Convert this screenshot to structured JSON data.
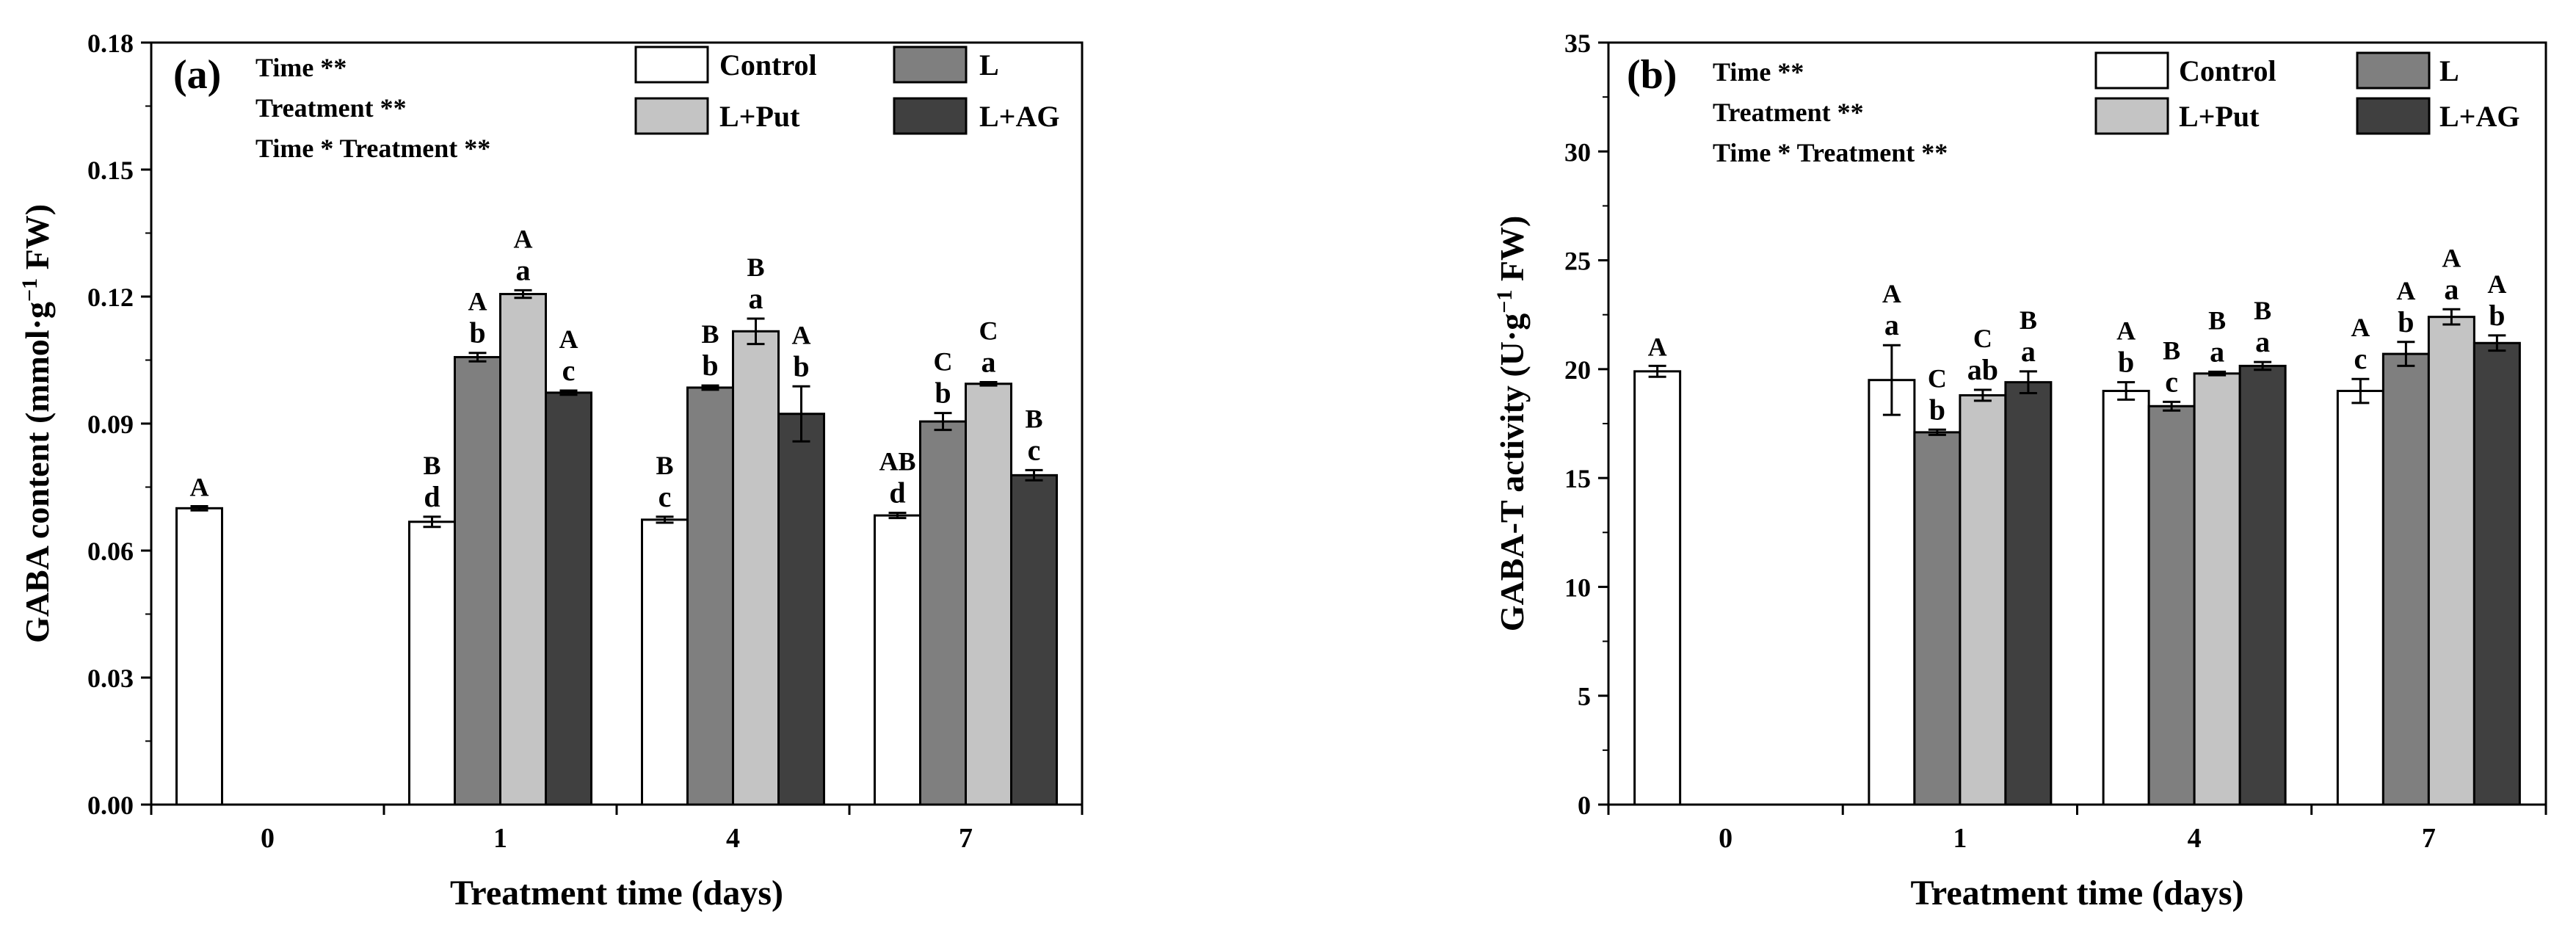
{
  "series_style": [
    {
      "name": "Control",
      "color": "#ffffff"
    },
    {
      "name": "L",
      "color": "#7f7f7f"
    },
    {
      "name": "L+Put",
      "color": "#c4c4c4"
    },
    {
      "name": "L+AG",
      "color": "#404040"
    }
  ],
  "chart_data": [
    {
      "type": "bar",
      "panel_label": "(a)",
      "xlabel": "Treatment time (days)",
      "ylabel": "GABA content (mmol·g",
      "ylabel_sup": "−1",
      "ylabel_suffix": " FW)",
      "ylim": [
        0,
        0.18
      ],
      "yticks": [
        "0.00",
        "0.03",
        "0.06",
        "0.09",
        "0.12",
        "0.15",
        "0.18"
      ],
      "categories": [
        "0",
        "1",
        "4",
        "7"
      ],
      "stats": [
        "Time **",
        "Treatment  **",
        "Time * Treatment **"
      ],
      "legend": [
        "Control",
        "L",
        "L+Put",
        "L+AG"
      ],
      "series": [
        {
          "name": "Control",
          "values": [
            0.07,
            0.0668,
            0.0673,
            0.0683
          ],
          "errors": [
            0.0005,
            0.0012,
            0.0007,
            0.0006
          ],
          "upper": [
            "A",
            "B",
            "B",
            "AB"
          ],
          "lower": [
            "",
            "d",
            "c",
            "d"
          ]
        },
        {
          "name": "L",
          "values": [
            null,
            0.1057,
            0.0985,
            0.0905
          ],
          "errors": [
            null,
            0.001,
            0.0005,
            0.002
          ],
          "upper": [
            "",
            "A",
            "B",
            "C"
          ],
          "lower": [
            "",
            "b",
            "b",
            "b"
          ]
        },
        {
          "name": "L+Put",
          "values": [
            null,
            0.1206,
            0.1118,
            0.0994
          ],
          "errors": [
            null,
            0.0009,
            0.003,
            0.0004
          ],
          "upper": [
            "",
            "A",
            "B",
            "C"
          ],
          "lower": [
            "",
            "a",
            "a",
            "a"
          ]
        },
        {
          "name": "L+AG",
          "values": [
            null,
            0.0973,
            0.0923,
            0.0778
          ],
          "errors": [
            null,
            0.0005,
            0.0065,
            0.0012
          ],
          "upper": [
            "",
            "A",
            "A",
            "B"
          ],
          "lower": [
            "",
            "c",
            "b",
            "c"
          ]
        }
      ]
    },
    {
      "type": "bar",
      "panel_label": "(b)",
      "xlabel": "Treatment time (days)",
      "ylabel": "GABA-T activity (U·g",
      "ylabel_sup": "−1",
      "ylabel_suffix": " FW)",
      "ylim": [
        0,
        35
      ],
      "yticks": [
        "0",
        "5",
        "10",
        "15",
        "20",
        "25",
        "30",
        "35"
      ],
      "categories": [
        "0",
        "1",
        "4",
        "7"
      ],
      "stats": [
        "Time **",
        "Treatment  **",
        "Time * Treatment **"
      ],
      "legend": [
        "Control",
        "L",
        "L+Put",
        "L+AG"
      ],
      "series": [
        {
          "name": "Control",
          "values": [
            19.9,
            19.5,
            19.0,
            19.0
          ],
          "errors": [
            0.25,
            1.6,
            0.4,
            0.55
          ],
          "upper": [
            "A",
            "A",
            "A",
            "A"
          ],
          "lower": [
            "",
            "a",
            "b",
            "c"
          ]
        },
        {
          "name": "L",
          "values": [
            null,
            17.1,
            18.3,
            20.7
          ],
          "errors": [
            null,
            0.12,
            0.2,
            0.55
          ],
          "upper": [
            "",
            "C",
            "B",
            "A"
          ],
          "lower": [
            "",
            "b",
            "c",
            "b"
          ]
        },
        {
          "name": "L+Put",
          "values": [
            null,
            18.8,
            19.8,
            22.4
          ],
          "errors": [
            null,
            0.25,
            0.08,
            0.35
          ],
          "upper": [
            "",
            "C",
            "B",
            "A"
          ],
          "lower": [
            "",
            "ab",
            "a",
            "a"
          ]
        },
        {
          "name": "L+AG",
          "values": [
            null,
            19.4,
            20.15,
            21.2
          ],
          "errors": [
            null,
            0.5,
            0.18,
            0.35
          ],
          "upper": [
            "",
            "B",
            "B",
            "A"
          ],
          "lower": [
            "",
            "a",
            "a",
            "b"
          ]
        }
      ]
    }
  ]
}
